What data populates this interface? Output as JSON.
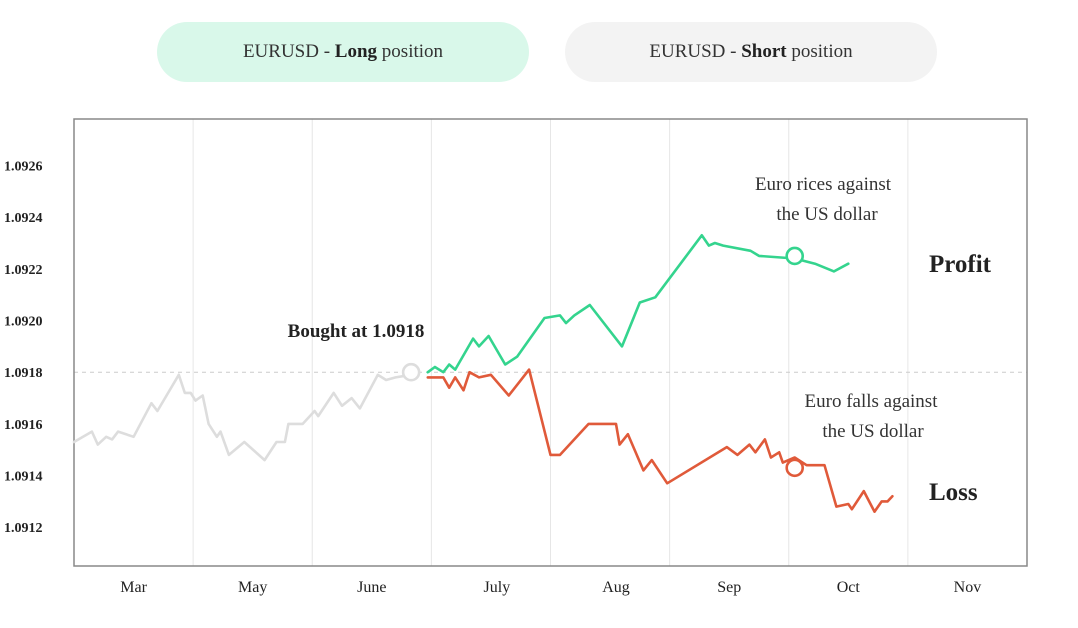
{
  "tabs": {
    "long": {
      "pair": "EURUSD",
      "sep": " - ",
      "bold": "Long",
      "rest": " position"
    },
    "short": {
      "pair": "EURUSD",
      "sep": " - ",
      "bold": "Short",
      "rest": " position"
    }
  },
  "colors": {
    "history": "#dddddd",
    "profit": "#34d48e",
    "loss": "#e05a3a",
    "grid": "#e6e6e6",
    "frame": "#888888",
    "entry_line": "#cccccc"
  },
  "chart_data": {
    "type": "line",
    "title": "",
    "xlabel": "",
    "ylabel": "",
    "ylim": [
      1.09105,
      1.09278
    ],
    "xlim": [
      0,
      8
    ],
    "x_ticks": [
      {
        "label": "Mar",
        "x": 0.5
      },
      {
        "label": "May",
        "x": 1.5
      },
      {
        "label": "June",
        "x": 2.5
      },
      {
        "label": "July",
        "x": 3.55
      },
      {
        "label": "Aug",
        "x": 4.55
      },
      {
        "label": "Sep",
        "x": 5.5
      },
      {
        "label": "Oct",
        "x": 6.5
      },
      {
        "label": "Nov",
        "x": 7.5
      }
    ],
    "y_ticks": [
      "1.0912",
      "1.0914",
      "1.0916",
      "1.0918",
      "1.0920",
      "1.0922",
      "1.0924",
      "1.0926"
    ],
    "grid_x": true,
    "grid_y": false,
    "entry_level": 1.0918,
    "entry_label": "Bought at 1.0918",
    "series": [
      {
        "key": "history",
        "points": [
          [
            0,
            1.09153
          ],
          [
            0.15,
            1.09157
          ],
          [
            0.2,
            1.09152
          ],
          [
            0.27,
            1.09155
          ],
          [
            0.32,
            1.09154
          ],
          [
            0.37,
            1.09157
          ],
          [
            0.5,
            1.09155
          ],
          [
            0.65,
            1.09168
          ],
          [
            0.7,
            1.09165
          ],
          [
            0.88,
            1.09179
          ],
          [
            0.93,
            1.09172
          ],
          [
            0.98,
            1.09172
          ],
          [
            1.02,
            1.09169
          ],
          [
            1.08,
            1.09171
          ],
          [
            1.13,
            1.0916
          ],
          [
            1.2,
            1.09155
          ],
          [
            1.23,
            1.09157
          ],
          [
            1.3,
            1.09148
          ],
          [
            1.43,
            1.09153
          ],
          [
            1.6,
            1.09146
          ],
          [
            1.7,
            1.09153
          ],
          [
            1.77,
            1.09153
          ],
          [
            1.8,
            1.0916
          ],
          [
            1.92,
            1.0916
          ],
          [
            2.02,
            1.09165
          ],
          [
            2.05,
            1.09163
          ],
          [
            2.18,
            1.09172
          ],
          [
            2.25,
            1.09167
          ],
          [
            2.33,
            1.0917
          ],
          [
            2.4,
            1.09166
          ],
          [
            2.55,
            1.09179
          ],
          [
            2.62,
            1.09177
          ],
          [
            2.7,
            1.09178
          ],
          [
            2.83,
            1.09179
          ]
        ]
      },
      {
        "key": "profit",
        "points": [
          [
            2.97,
            1.0918
          ],
          [
            3.03,
            1.09182
          ],
          [
            3.1,
            1.0918
          ],
          [
            3.15,
            1.09183
          ],
          [
            3.2,
            1.09181
          ],
          [
            3.35,
            1.09193
          ],
          [
            3.4,
            1.0919
          ],
          [
            3.48,
            1.09194
          ],
          [
            3.62,
            1.09183
          ],
          [
            3.72,
            1.09186
          ],
          [
            3.95,
            1.09201
          ],
          [
            4.08,
            1.09202
          ],
          [
            4.13,
            1.09199
          ],
          [
            4.2,
            1.09202
          ],
          [
            4.33,
            1.09206
          ],
          [
            4.6,
            1.0919
          ],
          [
            4.75,
            1.09207
          ],
          [
            4.88,
            1.09209
          ],
          [
            5.27,
            1.09233
          ],
          [
            5.33,
            1.09229
          ],
          [
            5.38,
            1.0923
          ],
          [
            5.45,
            1.09229
          ],
          [
            5.68,
            1.09227
          ],
          [
            5.75,
            1.09225
          ],
          [
            6.05,
            1.09224
          ],
          [
            6.22,
            1.09222
          ],
          [
            6.38,
            1.09219
          ],
          [
            6.5,
            1.09222
          ]
        ]
      },
      {
        "key": "loss",
        "points": [
          [
            2.97,
            1.09178
          ],
          [
            3.1,
            1.09178
          ],
          [
            3.15,
            1.09174
          ],
          [
            3.2,
            1.09178
          ],
          [
            3.27,
            1.09173
          ],
          [
            3.32,
            1.0918
          ],
          [
            3.4,
            1.09178
          ],
          [
            3.5,
            1.09179
          ],
          [
            3.65,
            1.09171
          ],
          [
            3.82,
            1.09181
          ],
          [
            4.0,
            1.09148
          ],
          [
            4.08,
            1.09148
          ],
          [
            4.32,
            1.0916
          ],
          [
            4.55,
            1.0916
          ],
          [
            4.58,
            1.09152
          ],
          [
            4.65,
            1.09156
          ],
          [
            4.78,
            1.09142
          ],
          [
            4.85,
            1.09146
          ],
          [
            4.98,
            1.09137
          ],
          [
            5.48,
            1.09151
          ],
          [
            5.57,
            1.09148
          ],
          [
            5.67,
            1.09152
          ],
          [
            5.72,
            1.09149
          ],
          [
            5.8,
            1.09154
          ],
          [
            5.85,
            1.09147
          ],
          [
            5.92,
            1.09149
          ],
          [
            5.95,
            1.09145
          ],
          [
            6.05,
            1.09147
          ],
          [
            6.15,
            1.09144
          ],
          [
            6.3,
            1.09144
          ],
          [
            6.4,
            1.09128
          ],
          [
            6.5,
            1.09129
          ],
          [
            6.53,
            1.09127
          ],
          [
            6.63,
            1.09134
          ],
          [
            6.72,
            1.09126
          ],
          [
            6.78,
            1.0913
          ],
          [
            6.83,
            1.0913
          ],
          [
            6.87,
            1.09132
          ]
        ]
      }
    ],
    "markers": [
      {
        "series": "history",
        "x": 2.83,
        "y": 1.0918
      },
      {
        "series": "profit",
        "x": 6.05,
        "y": 1.09225
      },
      {
        "series": "loss",
        "x": 6.05,
        "y": 1.09143
      }
    ],
    "annotations": {
      "profit_note": [
        "Euro rices against",
        "the US dollar"
      ],
      "loss_note": [
        "Euro falls against",
        "the US dollar"
      ],
      "profit_tag": "Profit",
      "loss_tag": "Loss"
    }
  }
}
